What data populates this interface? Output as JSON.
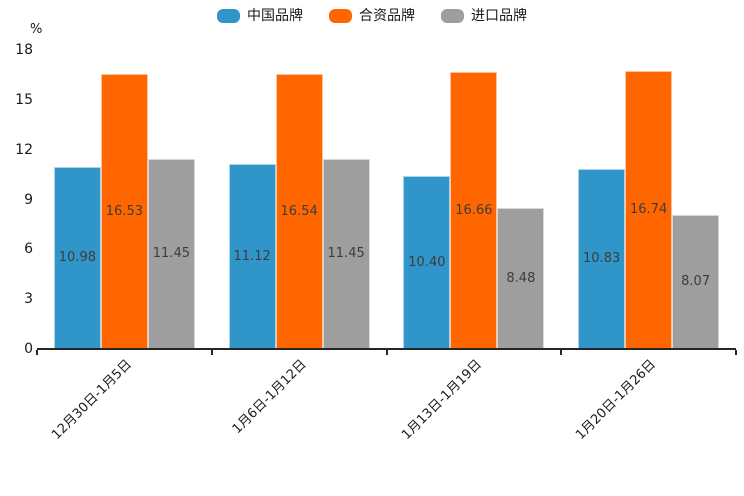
{
  "chart_data": {
    "type": "bar",
    "title": "",
    "unit_label": "%",
    "categories": [
      "12月30日-1月5日",
      "1月6日-1月12日",
      "1月13日-1月19日",
      "1月20日-1月26日"
    ],
    "series": [
      {
        "name": "中国品牌",
        "color": "#3095c8",
        "values": [
          10.98,
          11.12,
          10.4,
          10.83
        ]
      },
      {
        "name": "合资品牌",
        "color": "#ff6600",
        "values": [
          16.53,
          16.54,
          16.66,
          16.74
        ]
      },
      {
        "name": "进口品牌",
        "color": "#9e9e9e",
        "values": [
          11.45,
          11.45,
          8.48,
          8.07
        ]
      }
    ],
    "y_ticks": [
      0,
      3,
      6,
      9,
      12,
      15,
      18
    ],
    "ylim": [
      0,
      18
    ],
    "grid": false,
    "legend_position": "top",
    "value_label_decimals": 2,
    "axis_color": "#262626",
    "value_label_color": "#3d3d3d",
    "tick_label_color": "#1a1a1a"
  }
}
